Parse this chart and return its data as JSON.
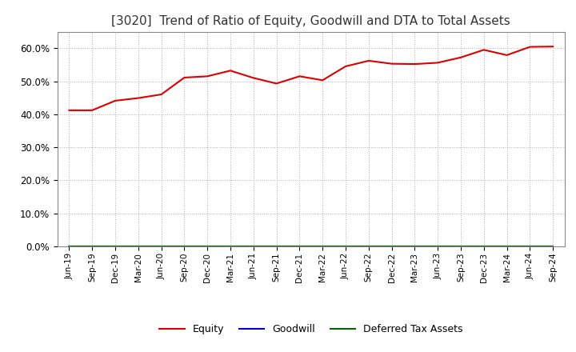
{
  "title": "[3020]  Trend of Ratio of Equity, Goodwill and DTA to Total Assets",
  "title_fontsize": 11,
  "title_color": "#333333",
  "background_color": "#ffffff",
  "plot_background_color": "#ffffff",
  "grid_color": "#b0b0b0",
  "x_labels": [
    "Jun-19",
    "Sep-19",
    "Dec-19",
    "Mar-20",
    "Jun-20",
    "Sep-20",
    "Dec-20",
    "Mar-21",
    "Jun-21",
    "Sep-21",
    "Dec-21",
    "Mar-22",
    "Jun-22",
    "Sep-22",
    "Dec-22",
    "Mar-23",
    "Jun-23",
    "Sep-23",
    "Dec-23",
    "Mar-24",
    "Jun-24",
    "Sep-24"
  ],
  "equity": [
    0.412,
    0.412,
    0.441,
    0.449,
    0.46,
    0.511,
    0.515,
    0.532,
    0.51,
    0.493,
    0.515,
    0.503,
    0.545,
    0.562,
    0.553,
    0.552,
    0.556,
    0.572,
    0.595,
    0.579,
    0.604,
    0.605
  ],
  "goodwill": [
    0.0,
    0.0,
    0.0,
    0.0,
    0.0,
    0.0,
    0.0,
    0.0,
    0.0,
    0.0,
    0.0,
    0.0,
    0.0,
    0.0,
    0.0,
    0.0,
    0.0,
    0.0,
    0.0,
    0.0,
    0.0,
    0.0
  ],
  "dta": [
    0.0,
    0.0,
    0.0,
    0.0,
    0.0,
    0.0,
    0.0,
    0.0,
    0.0,
    0.0,
    0.0,
    0.0,
    0.0,
    0.0,
    0.0,
    0.0,
    0.0,
    0.0,
    0.0,
    0.0,
    0.0,
    0.0
  ],
  "equity_color": "#dd0000",
  "goodwill_color": "#0000cc",
  "dta_color": "#006600",
  "line_width": 1.5,
  "ylim": [
    0.0,
    0.65
  ],
  "yticks": [
    0.0,
    0.1,
    0.2,
    0.3,
    0.4,
    0.5,
    0.6
  ],
  "legend_labels": [
    "Equity",
    "Goodwill",
    "Deferred Tax Assets"
  ],
  "legend_ncol": 3,
  "legend_fontsize": 9,
  "xlabel_fontsize": 7.5,
  "ylabel_fontsize": 8.5
}
